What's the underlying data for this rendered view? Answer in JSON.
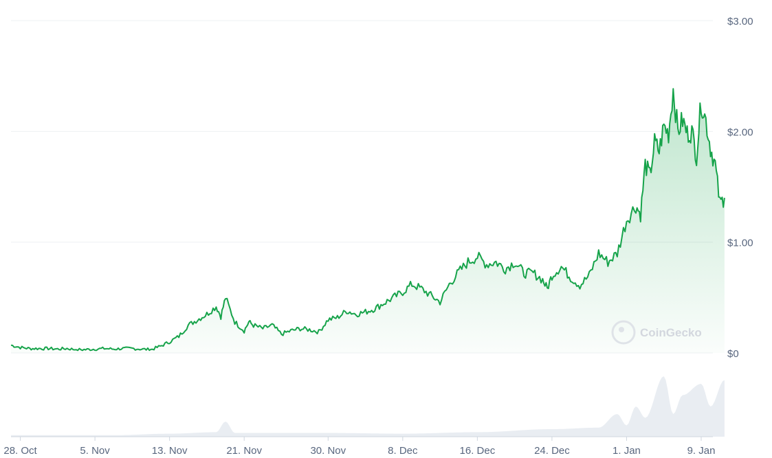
{
  "chart_data": {
    "type": "area",
    "ylim": [
      0,
      3
    ],
    "y_ticks": [
      "$0",
      "$1.00",
      "$2.00",
      "$3.00"
    ],
    "y_tick_values": [
      0,
      1,
      2,
      3
    ],
    "x_ticks": [
      "28. Oct",
      "5. Nov",
      "13. Nov",
      "21. Nov",
      "30. Nov",
      "8. Dec",
      "16. Dec",
      "24. Dec",
      "1. Jan",
      "9. Jan"
    ],
    "x_tick_days": [
      0,
      8,
      16,
      24,
      33,
      41,
      49,
      57,
      65,
      73
    ],
    "x_range_days": [
      -1,
      74
    ],
    "line_color": "#16a34a",
    "grid": true,
    "watermark": "CoinGecko",
    "series": [
      {
        "values": [
          [
            -1,
            0.07
          ],
          [
            0,
            0.05
          ],
          [
            1,
            0.04
          ],
          [
            2,
            0.04
          ],
          [
            3,
            0.04
          ],
          [
            4,
            0.035
          ],
          [
            5,
            0.04
          ],
          [
            6,
            0.03
          ],
          [
            7,
            0.03
          ],
          [
            8,
            0.035
          ],
          [
            9,
            0.04
          ],
          [
            10,
            0.035
          ],
          [
            11,
            0.04
          ],
          [
            12,
            0.04
          ],
          [
            13,
            0.035
          ],
          [
            14,
            0.03
          ],
          [
            15,
            0.06
          ],
          [
            16,
            0.1
          ],
          [
            17,
            0.15
          ],
          [
            18,
            0.25
          ],
          [
            19,
            0.3
          ],
          [
            20,
            0.35
          ],
          [
            21,
            0.42
          ],
          [
            21.5,
            0.33
          ],
          [
            22,
            0.5
          ],
          [
            23,
            0.28
          ],
          [
            24,
            0.2
          ],
          [
            24.5,
            0.28
          ],
          [
            25,
            0.25
          ],
          [
            26,
            0.22
          ],
          [
            27,
            0.25
          ],
          [
            28,
            0.17
          ],
          [
            29,
            0.2
          ],
          [
            30,
            0.22
          ],
          [
            31,
            0.21
          ],
          [
            32,
            0.19
          ],
          [
            33,
            0.3
          ],
          [
            34,
            0.32
          ],
          [
            35,
            0.38
          ],
          [
            36,
            0.35
          ],
          [
            37,
            0.37
          ],
          [
            38,
            0.4
          ],
          [
            39,
            0.45
          ],
          [
            40,
            0.5
          ],
          [
            41,
            0.55
          ],
          [
            42,
            0.62
          ],
          [
            43,
            0.58
          ],
          [
            44,
            0.52
          ],
          [
            45,
            0.46
          ],
          [
            46,
            0.62
          ],
          [
            47,
            0.73
          ],
          [
            48,
            0.82
          ],
          [
            49,
            0.87
          ],
          [
            50,
            0.8
          ],
          [
            51,
            0.82
          ],
          [
            52,
            0.76
          ],
          [
            53,
            0.82
          ],
          [
            54,
            0.72
          ],
          [
            55,
            0.72
          ],
          [
            56,
            0.66
          ],
          [
            56.5,
            0.58
          ],
          [
            57,
            0.7
          ],
          [
            58,
            0.78
          ],
          [
            59,
            0.68
          ],
          [
            60,
            0.61
          ],
          [
            61,
            0.7
          ],
          [
            62,
            0.9
          ],
          [
            63,
            0.82
          ],
          [
            64,
            0.9
          ],
          [
            65,
            1.2
          ],
          [
            66,
            1.33
          ],
          [
            66.5,
            1.25
          ],
          [
            67,
            1.7
          ],
          [
            67.5,
            1.6
          ],
          [
            68,
            1.9
          ],
          [
            68.5,
            1.82
          ],
          [
            69,
            2.05
          ],
          [
            69.5,
            1.98
          ],
          [
            70,
            2.38
          ],
          [
            70.5,
            2.0
          ],
          [
            71,
            2.1
          ],
          [
            71.5,
            1.98
          ],
          [
            72,
            2.0
          ],
          [
            72.5,
            1.78
          ],
          [
            73,
            2.27
          ],
          [
            73.5,
            2.1
          ],
          [
            74,
            1.85
          ],
          [
            74.5,
            1.7
          ],
          [
            75,
            1.35
          ],
          [
            75.5,
            1.4
          ]
        ]
      }
    ],
    "volume": [
      [
        -1,
        0.02
      ],
      [
        10,
        0.02
      ],
      [
        16,
        0.04
      ],
      [
        21,
        0.06
      ],
      [
        22,
        0.2
      ],
      [
        23,
        0.05
      ],
      [
        33,
        0.05
      ],
      [
        41,
        0.04
      ],
      [
        49,
        0.06
      ],
      [
        57,
        0.1
      ],
      [
        62,
        0.12
      ],
      [
        64,
        0.3
      ],
      [
        65,
        0.15
      ],
      [
        66,
        0.4
      ],
      [
        67,
        0.25
      ],
      [
        69,
        0.8
      ],
      [
        70,
        0.3
      ],
      [
        71,
        0.55
      ],
      [
        73,
        0.7
      ],
      [
        74,
        0.4
      ],
      [
        75.5,
        0.75
      ]
    ]
  }
}
